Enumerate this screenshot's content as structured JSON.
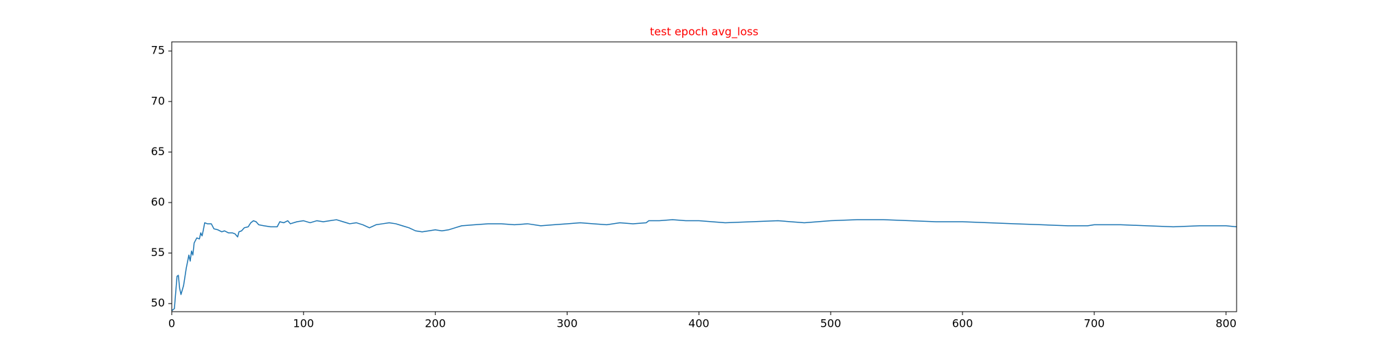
{
  "chart_data": {
    "type": "line",
    "title": "test epoch avg_loss",
    "title_color": "#ff0000",
    "xlim": [
      0,
      808
    ],
    "ylim": [
      49.2,
      75.9
    ],
    "xticks": [
      0,
      100,
      200,
      300,
      400,
      500,
      600,
      700,
      800
    ],
    "yticks": [
      50,
      55,
      60,
      65,
      70,
      75
    ],
    "grid": false,
    "series": [
      {
        "color": "#1f77b4",
        "x": [
          0,
          2,
          4,
          5,
          6,
          7,
          9,
          11,
          13,
          14,
          15,
          16,
          17,
          19,
          21,
          22,
          23,
          24,
          25,
          27,
          30,
          32,
          35,
          38,
          40,
          43,
          46,
          48,
          50,
          51,
          53,
          55,
          58,
          60,
          62,
          64,
          66,
          70,
          75,
          80,
          82,
          85,
          88,
          90,
          95,
          100,
          105,
          110,
          115,
          120,
          125,
          130,
          135,
          140,
          145,
          150,
          155,
          160,
          165,
          170,
          175,
          180,
          185,
          190,
          195,
          200,
          205,
          210,
          215,
          220,
          230,
          240,
          250,
          260,
          270,
          280,
          290,
          300,
          310,
          320,
          330,
          340,
          350,
          360,
          362,
          370,
          380,
          390,
          400,
          420,
          440,
          460,
          480,
          490,
          500,
          520,
          540,
          560,
          580,
          600,
          620,
          640,
          660,
          680,
          695,
          700,
          720,
          740,
          760,
          780,
          800,
          808
        ],
        "values": [
          49.3,
          49.5,
          52.7,
          52.8,
          51.5,
          50.9,
          51.8,
          53.5,
          54.8,
          54.2,
          55.2,
          54.8,
          56.0,
          56.5,
          56.4,
          57.0,
          56.7,
          57.3,
          58.0,
          57.9,
          57.9,
          57.4,
          57.3,
          57.1,
          57.2,
          57.0,
          57.0,
          56.9,
          56.6,
          57.1,
          57.2,
          57.5,
          57.6,
          58.0,
          58.2,
          58.1,
          57.8,
          57.7,
          57.6,
          57.6,
          58.1,
          58.0,
          58.2,
          57.9,
          58.1,
          58.2,
          58.0,
          58.2,
          58.1,
          58.2,
          58.3,
          58.1,
          57.9,
          58.0,
          57.8,
          57.5,
          57.8,
          57.9,
          58.0,
          57.9,
          57.7,
          57.5,
          57.2,
          57.1,
          57.2,
          57.3,
          57.2,
          57.3,
          57.5,
          57.7,
          57.8,
          57.9,
          57.9,
          57.8,
          57.9,
          57.7,
          57.8,
          57.9,
          58.0,
          57.9,
          57.8,
          58.0,
          57.9,
          58.0,
          58.2,
          58.2,
          58.3,
          58.2,
          58.2,
          58.0,
          58.1,
          58.2,
          58.0,
          58.1,
          58.2,
          58.3,
          58.3,
          58.2,
          58.1,
          58.1,
          58.0,
          57.9,
          57.8,
          57.7,
          57.7,
          57.8,
          57.8,
          57.7,
          57.6,
          57.7,
          57.7,
          57.6
        ]
      }
    ]
  }
}
